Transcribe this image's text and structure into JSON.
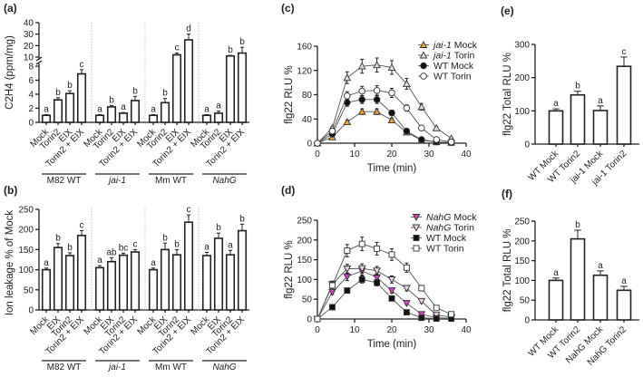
{
  "chart_data": [
    {
      "id": "a",
      "panel": "(a)",
      "type": "bar",
      "ylabel": "C2H4 (ppm/mg)",
      "ylim_lower": [
        0,
        8
      ],
      "ylim_upper": [
        10,
        40
      ],
      "yticks_lower": [
        0,
        2,
        4,
        6,
        8
      ],
      "yticks_upper": [
        10,
        20,
        30,
        40
      ],
      "groups": [
        {
          "name": "M82 WT",
          "italic": false,
          "categories": [
            "Mock",
            "Torin2",
            "EIX",
            "Torin2 + EIX"
          ],
          "values": [
            1,
            3.2,
            4.1,
            6.9
          ],
          "errors": [
            0.1,
            0.3,
            0.4,
            0.6
          ],
          "letters": [
            "a",
            "b",
            "b",
            "c"
          ]
        },
        {
          "name": "jai-1",
          "italic": true,
          "categories": [
            "Mock",
            "Torin2",
            "EIX",
            "Torin2 + EIX"
          ],
          "values": [
            1,
            2.2,
            1.3,
            3.1
          ],
          "errors": [
            0.1,
            0.2,
            0.1,
            0.6
          ],
          "letters": [
            "a",
            "b",
            "a",
            "b"
          ]
        },
        {
          "name": "Mm WT",
          "italic": false,
          "categories": [
            "Mock",
            "Torin2",
            "EIX",
            "Torin2 + EIX"
          ],
          "values": [
            1,
            2.8,
            12,
            25
          ],
          "errors": [
            0.1,
            0.6,
            1.5,
            5
          ],
          "letters": [
            "a",
            "b",
            "c",
            "d"
          ]
        },
        {
          "name": "NahG",
          "italic": true,
          "categories": [
            "Mock",
            "Torin2",
            "EIX",
            "Torin2 + EIX"
          ],
          "values": [
            1,
            1.3,
            11,
            13.5
          ],
          "errors": [
            0.1,
            0.3,
            0.5,
            5
          ],
          "letters": [
            "a",
            "a",
            "b",
            "b"
          ]
        }
      ]
    },
    {
      "id": "b",
      "panel": "(b)",
      "type": "bar",
      "ylabel": "Ion leakage % of Mock",
      "ylim": [
        0,
        250
      ],
      "yticks": [
        0,
        50,
        100,
        150,
        200,
        250
      ],
      "groups": [
        {
          "name": "M82 WT",
          "italic": false,
          "categories": [
            "Mock",
            "EIX",
            "Torin2",
            "Torin2 + EIX"
          ],
          "values": [
            100,
            155,
            135,
            185
          ],
          "errors": [
            4,
            10,
            7,
            12
          ],
          "letters": [
            "a",
            "b",
            "b",
            "c"
          ]
        },
        {
          "name": "jai-1",
          "italic": true,
          "categories": [
            "Mock",
            "EIX",
            "Torin2",
            "Torin2 + EIX"
          ],
          "values": [
            105,
            120,
            136,
            144
          ],
          "errors": [
            5,
            10,
            5,
            6
          ],
          "letters": [
            "a",
            "ab",
            "bc",
            "c"
          ]
        },
        {
          "name": "Mm WT",
          "italic": false,
          "categories": [
            "Mock",
            "EIX",
            "Torin2",
            "Torin2 + EIX"
          ],
          "values": [
            100,
            150,
            137,
            218
          ],
          "errors": [
            4,
            16,
            13,
            18
          ],
          "letters": [
            "a",
            "b",
            "b",
            "c"
          ]
        },
        {
          "name": "NahG",
          "italic": true,
          "categories": [
            "Mock",
            "EIX",
            "Torin2",
            "Torin2 + EIX"
          ],
          "values": [
            135,
            178,
            137,
            197
          ],
          "errors": [
            8,
            13,
            11,
            16
          ],
          "letters": [
            "a",
            "b",
            "a",
            "b"
          ]
        }
      ]
    },
    {
      "id": "c",
      "panel": "(c)",
      "type": "line",
      "xlabel": "Time (min)",
      "ylabel": "flg22 RLU %",
      "xlim": [
        0,
        40
      ],
      "ylim": [
        0,
        160
      ],
      "xticks": [
        0,
        10,
        20,
        30,
        40
      ],
      "yticks": [
        0,
        40,
        80,
        120,
        160
      ],
      "x": [
        0,
        4,
        8,
        12,
        16,
        20,
        24,
        28,
        32,
        36
      ],
      "series": [
        {
          "name": "jai-1 Mock",
          "geno": "jai-1",
          "trt": "Mock",
          "italic": true,
          "marker": "triangle-up",
          "fill": "#f0a030",
          "values": [
            0,
            10,
            35,
            52,
            52,
            38,
            18,
            5,
            2,
            1
          ]
        },
        {
          "name": "jai-1 Torin",
          "geno": "jai-1",
          "trt": "Torin",
          "italic": true,
          "marker": "triangle-up",
          "fill": "#dddddd",
          "values": [
            0,
            25,
            108,
            127,
            129,
            125,
            98,
            60,
            25,
            8
          ]
        },
        {
          "name": "WT Mock",
          "geno": "WT",
          "trt": "Mock",
          "italic": false,
          "marker": "circle",
          "fill": "#111111",
          "values": [
            0,
            15,
            67,
            72,
            72,
            50,
            20,
            6,
            2,
            1
          ]
        },
        {
          "name": "WT Torin",
          "geno": "WT",
          "trt": "Torin",
          "italic": false,
          "marker": "circle",
          "fill": "#ffffff",
          "values": [
            0,
            20,
            78,
            86,
            87,
            83,
            58,
            25,
            6,
            2
          ]
        }
      ]
    },
    {
      "id": "d",
      "panel": "(d)",
      "type": "line",
      "xlabel": "Time (min)",
      "ylabel": "flg22 RLU %",
      "xlim": [
        0,
        40
      ],
      "ylim": [
        0,
        250
      ],
      "xticks": [
        0,
        10,
        20,
        30,
        40
      ],
      "yticks": [
        0,
        50,
        100,
        150,
        200,
        250
      ],
      "x": [
        0,
        4,
        8,
        12,
        16,
        20,
        24,
        28,
        32,
        36
      ],
      "series": [
        {
          "name": "NahG Mock",
          "geno": "NahG",
          "trt": "Mock",
          "italic": true,
          "marker": "triangle-down",
          "fill": "#d040c0",
          "values": [
            0,
            68,
            107,
            122,
            105,
            72,
            40,
            12,
            3,
            2
          ]
        },
        {
          "name": "NahG Torin",
          "geno": "NahG",
          "trt": "Torin",
          "italic": true,
          "marker": "triangle-down",
          "fill": "#f3d0ef",
          "values": [
            0,
            88,
            127,
            128,
            122,
            100,
            78,
            45,
            10,
            5
          ]
        },
        {
          "name": "WT Mock",
          "geno": "WT",
          "trt": "Mock",
          "italic": false,
          "marker": "square",
          "fill": "#111111",
          "values": [
            0,
            30,
            72,
            100,
            92,
            52,
            17,
            3,
            1,
            1
          ]
        },
        {
          "name": "WT Torin",
          "geno": "WT",
          "trt": "Torin",
          "italic": false,
          "marker": "square",
          "fill": "#ffffff",
          "values": [
            0,
            85,
            173,
            190,
            178,
            163,
            130,
            78,
            28,
            12
          ]
        }
      ]
    },
    {
      "id": "e",
      "panel": "(e)",
      "type": "bar",
      "ylabel": "flg22 Total RLU %",
      "ylim": [
        0,
        300
      ],
      "yticks": [
        0,
        100,
        200,
        300
      ],
      "categories": [
        "WT Mock",
        "WT Torin2",
        "jai-1 Mock",
        "jai-1 Torin2"
      ],
      "values": [
        100,
        148,
        101,
        234
      ],
      "errors": [
        6,
        11,
        14,
        28
      ],
      "letters": [
        "a",
        "b",
        "a",
        "c"
      ]
    },
    {
      "id": "f",
      "panel": "(f)",
      "type": "bar",
      "ylabel": "flg22 Total RLU %",
      "ylim": [
        0,
        250
      ],
      "yticks": [
        0,
        50,
        100,
        150,
        200,
        250
      ],
      "categories": [
        "WT Mock",
        "WT Torin2",
        "NahG Mock",
        "NahG Torin2"
      ],
      "values": [
        100,
        205,
        113,
        75
      ],
      "errors": [
        6,
        22,
        11,
        10
      ],
      "letters": [
        "a",
        "b",
        "a",
        "a"
      ]
    }
  ]
}
